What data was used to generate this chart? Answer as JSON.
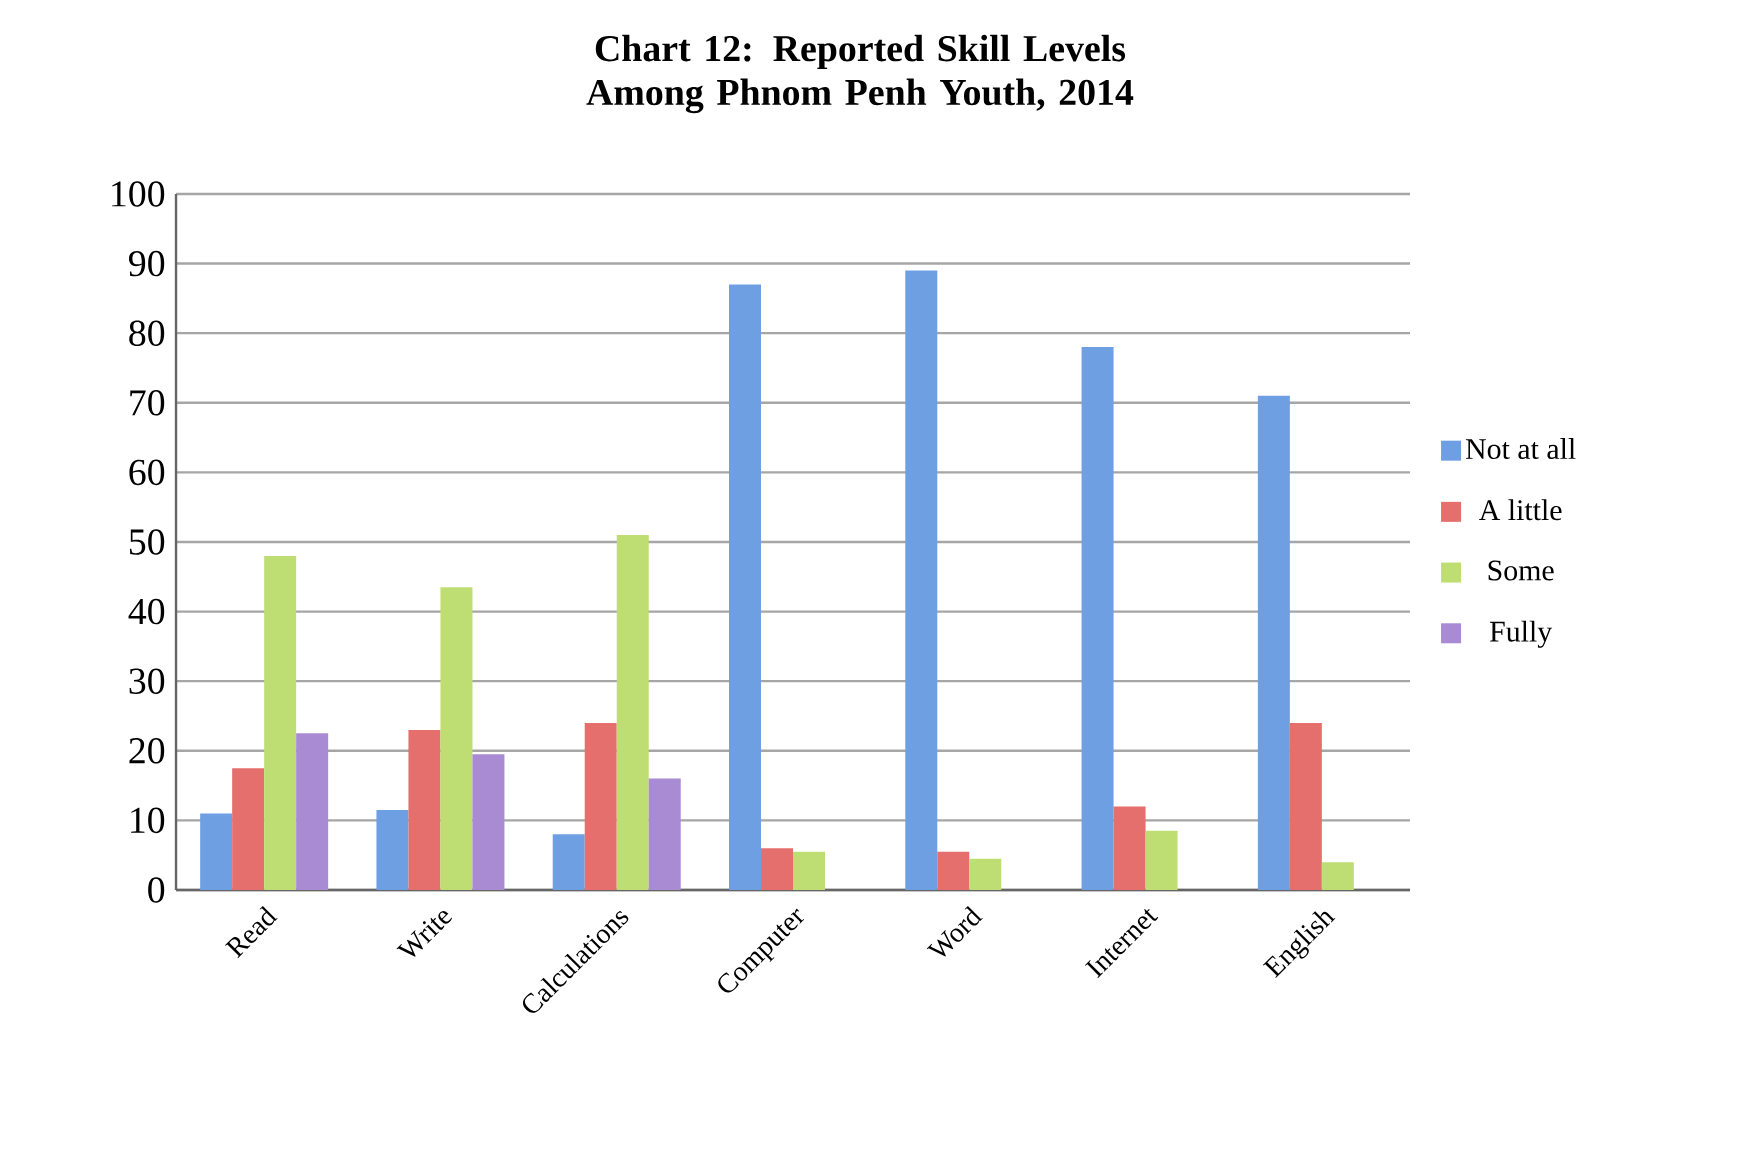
{
  "chart_data": {
    "type": "bar",
    "title": "Chart 12: Reported Skill Levels Among Phnom Penh Youth, 2014",
    "categories": [
      "Read",
      "Write",
      "Calculations",
      "Computer",
      "Word",
      "Internet",
      "English"
    ],
    "series": [
      {
        "name": "Not at all",
        "color": "#6f9fe3",
        "values": [
          11,
          11.5,
          8,
          87,
          89,
          78,
          71
        ]
      },
      {
        "name": "A little",
        "color": "#e46f6c",
        "values": [
          17.5,
          23,
          24,
          6,
          5.5,
          12,
          24
        ]
      },
      {
        "name": "Some",
        "color": "#bede73",
        "values": [
          48,
          43.5,
          51,
          5.5,
          4.5,
          8.5,
          4
        ]
      },
      {
        "name": "Fully",
        "color": "#a98bd3",
        "values": [
          22.5,
          19.5,
          16,
          0,
          0,
          0,
          0
        ]
      }
    ],
    "ylim": [
      0,
      100
    ],
    "yticks": [
      0,
      10,
      20,
      30,
      40,
      50,
      60,
      70,
      80,
      90,
      100
    ],
    "grid": "y",
    "legend": "right"
  }
}
